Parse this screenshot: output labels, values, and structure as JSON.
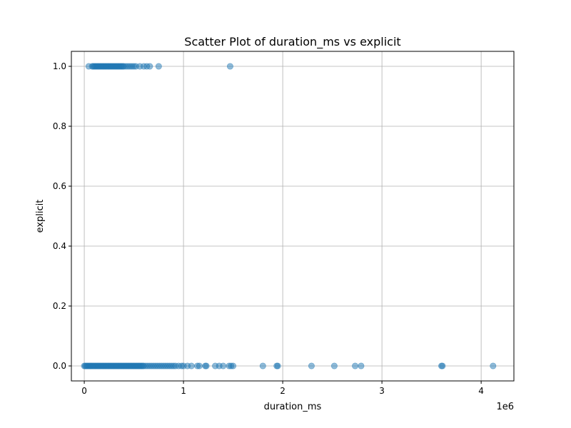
{
  "chart_data": {
    "type": "scatter",
    "title": "Scatter Plot of duration_ms vs explicit",
    "xlabel": "duration_ms",
    "ylabel": "explicit",
    "x_offset_label": "1e6",
    "xlim": [
      -130000,
      4330000
    ],
    "ylim": [
      -0.05,
      1.05
    ],
    "xticks": [
      0,
      1000000,
      2000000,
      3000000,
      4000000
    ],
    "xtick_labels": [
      "0",
      "1",
      "2",
      "3",
      "4"
    ],
    "yticks": [
      0.0,
      0.2,
      0.4,
      0.6,
      0.8,
      1.0
    ],
    "ytick_labels": [
      "0.0",
      "0.2",
      "0.4",
      "0.6",
      "0.8",
      "1.0"
    ],
    "grid": true,
    "marker_color": "#1f77b4",
    "marker_alpha": 0.5,
    "series": [
      {
        "x": [
          45000,
          80000,
          90000,
          100000,
          110000,
          120000,
          130000,
          140000,
          150000,
          160000,
          170000,
          180000,
          190000,
          200000,
          210000,
          220000,
          230000,
          240000,
          250000,
          260000,
          270000,
          280000,
          290000,
          300000,
          310000,
          320000,
          330000,
          340000,
          350000,
          360000,
          370000,
          380000,
          390000,
          400000,
          420000,
          440000,
          460000,
          480000,
          500000,
          520000,
          560000,
          600000,
          630000,
          660000,
          750000,
          1470000
        ],
        "y": [
          1,
          1,
          1,
          1,
          1,
          1,
          1,
          1,
          1,
          1,
          1,
          1,
          1,
          1,
          1,
          1,
          1,
          1,
          1,
          1,
          1,
          1,
          1,
          1,
          1,
          1,
          1,
          1,
          1,
          1,
          1,
          1,
          1,
          1,
          1,
          1,
          1,
          1,
          1,
          1,
          1,
          1,
          1,
          1,
          1,
          1
        ]
      },
      {
        "x": [
          0,
          10000,
          20000,
          30000,
          40000,
          50000,
          60000,
          70000,
          80000,
          90000,
          100000,
          110000,
          120000,
          130000,
          140000,
          150000,
          160000,
          170000,
          180000,
          190000,
          200000,
          210000,
          220000,
          230000,
          240000,
          250000,
          260000,
          270000,
          280000,
          290000,
          300000,
          310000,
          320000,
          330000,
          340000,
          350000,
          360000,
          370000,
          380000,
          390000,
          400000,
          410000,
          420000,
          430000,
          440000,
          450000,
          460000,
          470000,
          480000,
          490000,
          500000,
          510000,
          520000,
          530000,
          540000,
          550000,
          560000,
          570000,
          580000,
          590000,
          600000,
          620000,
          640000,
          660000,
          680000,
          700000,
          720000,
          740000,
          760000,
          780000,
          800000,
          820000,
          840000,
          860000,
          880000,
          900000,
          920000,
          950000,
          980000,
          1000000,
          1040000,
          1080000,
          1140000,
          1160000,
          1220000,
          1230000,
          1320000,
          1360000,
          1400000,
          1460000,
          1480000,
          1500000,
          1800000,
          1940000,
          1950000,
          2290000,
          2520000,
          2730000,
          2790000,
          3600000,
          3610000,
          4120000
        ],
        "y": [
          0,
          0,
          0,
          0,
          0,
          0,
          0,
          0,
          0,
          0,
          0,
          0,
          0,
          0,
          0,
          0,
          0,
          0,
          0,
          0,
          0,
          0,
          0,
          0,
          0,
          0,
          0,
          0,
          0,
          0,
          0,
          0,
          0,
          0,
          0,
          0,
          0,
          0,
          0,
          0,
          0,
          0,
          0,
          0,
          0,
          0,
          0,
          0,
          0,
          0,
          0,
          0,
          0,
          0,
          0,
          0,
          0,
          0,
          0,
          0,
          0,
          0,
          0,
          0,
          0,
          0,
          0,
          0,
          0,
          0,
          0,
          0,
          0,
          0,
          0,
          0,
          0,
          0,
          0,
          0,
          0,
          0,
          0,
          0,
          0,
          0,
          0,
          0,
          0,
          0,
          0,
          0,
          0,
          0,
          0,
          0,
          0,
          0,
          0,
          0,
          0,
          0
        ]
      }
    ]
  }
}
